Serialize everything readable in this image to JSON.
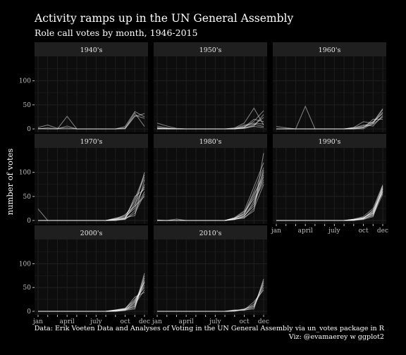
{
  "title": "Activity ramps up in the UN General Assembly",
  "subtitle": "Role call votes by month, 1946-2015",
  "caption_line1": "Data: Erik Voeten Data and Analyses of Voting in the UN General Assembly via un_votes package in R",
  "caption_line2": "Viz: @evamaerey w ggplot2",
  "colors": {
    "background": "#000000",
    "panel": "#0d0d0d",
    "strip": "#1f1f1f",
    "grid": "#1e1e1e",
    "line": "#ffffff"
  },
  "chart_data": {
    "type": "line",
    "facet_by": "decade",
    "xlabel": "",
    "ylabel": "number of votes",
    "x": [
      "jan",
      "feb",
      "mar",
      "april",
      "may",
      "june",
      "july",
      "aug",
      "sep",
      "oct",
      "nov",
      "dec"
    ],
    "x_tick_labels": [
      "jan",
      "april",
      "july",
      "oct",
      "dec"
    ],
    "y_ticks": [
      0,
      50,
      100
    ],
    "ylim": [
      0,
      145
    ],
    "grid": true,
    "panels": [
      {
        "label": "1940's",
        "series": [
          {
            "values": [
              3,
              8,
              1,
              2,
              0,
              0,
              0,
              0,
              0,
              2,
              28,
              22
            ]
          },
          {
            "values": [
              0,
              2,
              0,
              26,
              0,
              0,
              0,
              0,
              0,
              1,
              33,
              5
            ]
          },
          {
            "values": [
              0,
              0,
              0,
              6,
              0,
              0,
              0,
              0,
              0,
              5,
              36,
              25
            ]
          },
          {
            "values": [
              1,
              0,
              0,
              0,
              0,
              0,
              0,
              0,
              0,
              0,
              26,
              32
            ]
          }
        ]
      },
      {
        "label": "1950's",
        "series": [
          {
            "values": [
              12,
              6,
              1,
              0,
              0,
              0,
              0,
              0,
              0,
              6,
              10,
              5
            ]
          },
          {
            "values": [
              2,
              1,
              0,
              0,
              0,
              0,
              0,
              0,
              2,
              12,
              43,
              8
            ]
          },
          {
            "values": [
              0,
              0,
              0,
              0,
              0,
              0,
              0,
              0,
              0,
              3,
              16,
              38
            ]
          },
          {
            "values": [
              6,
              2,
              0,
              0,
              0,
              0,
              0,
              0,
              0,
              2,
              8,
              24
            ]
          },
          {
            "values": [
              0,
              1,
              0,
              0,
              0,
              0,
              0,
              0,
              0,
              4,
              20,
              15
            ]
          },
          {
            "values": [
              1,
              0,
              0,
              0,
              0,
              0,
              0,
              0,
              0,
              1,
              6,
              30
            ]
          },
          {
            "values": [
              0,
              0,
              0,
              0,
              0,
              0,
              0,
              0,
              1,
              8,
              12,
              10
            ]
          },
          {
            "values": [
              3,
              0,
              0,
              0,
              0,
              0,
              0,
              0,
              0,
              2,
              5,
              3
            ]
          }
        ]
      },
      {
        "label": "1960's",
        "series": [
          {
            "values": [
              5,
              2,
              0,
              47,
              0,
              0,
              0,
              0,
              3,
              15,
              12,
              40
            ]
          },
          {
            "values": [
              0,
              0,
              0,
              0,
              0,
              0,
              0,
              0,
              2,
              6,
              15,
              32
            ]
          },
          {
            "values": [
              0,
              0,
              0,
              0,
              0,
              0,
              0,
              0,
              1,
              4,
              10,
              25
            ]
          },
          {
            "values": [
              0,
              0,
              0,
              0,
              0,
              0,
              0,
              0,
              0,
              3,
              14,
              42
            ]
          },
          {
            "values": [
              0,
              0,
              0,
              0,
              0,
              0,
              0,
              0,
              2,
              8,
              6,
              28
            ]
          },
          {
            "values": [
              0,
              0,
              0,
              0,
              0,
              0,
              0,
              0,
              0,
              2,
              20,
              20
            ]
          },
          {
            "values": [
              0,
              0,
              0,
              0,
              0,
              0,
              0,
              0,
              0,
              0,
              12,
              35
            ]
          }
        ]
      },
      {
        "label": "1970's",
        "series": [
          {
            "values": [
              24,
              0,
              0,
              0,
              0,
              0,
              0,
              0,
              3,
              5,
              30,
              100
            ]
          },
          {
            "values": [
              0,
              0,
              0,
              0,
              0,
              0,
              0,
              0,
              5,
              10,
              40,
              90
            ]
          },
          {
            "values": [
              0,
              0,
              0,
              0,
              0,
              0,
              0,
              0,
              2,
              3,
              15,
              55
            ]
          },
          {
            "values": [
              0,
              0,
              0,
              0,
              0,
              0,
              0,
              0,
              4,
              8,
              25,
              75
            ]
          },
          {
            "values": [
              0,
              0,
              0,
              0,
              0,
              0,
              0,
              0,
              1,
              2,
              20,
              60
            ]
          },
          {
            "values": [
              0,
              0,
              0,
              0,
              0,
              0,
              0,
              0,
              0,
              5,
              45,
              95
            ]
          },
          {
            "values": [
              0,
              0,
              0,
              0,
              0,
              0,
              0,
              0,
              2,
              12,
              30,
              50
            ]
          },
          {
            "values": [
              0,
              0,
              0,
              0,
              0,
              0,
              0,
              0,
              3,
              6,
              10,
              85
            ]
          },
          {
            "values": [
              0,
              0,
              0,
              0,
              0,
              0,
              0,
              0,
              1,
              4,
              35,
              70
            ]
          },
          {
            "values": [
              0,
              0,
              0,
              0,
              0,
              0,
              0,
              0,
              0,
              3,
              50,
              65
            ]
          }
        ]
      },
      {
        "label": "1980's",
        "series": [
          {
            "values": [
              1,
              0,
              3,
              0,
              0,
              0,
              0,
              0,
              2,
              6,
              20,
              140
            ]
          },
          {
            "values": [
              0,
              0,
              0,
              0,
              0,
              0,
              0,
              0,
              4,
              15,
              60,
              110
            ]
          },
          {
            "values": [
              0,
              0,
              0,
              0,
              0,
              0,
              0,
              0,
              3,
              10,
              30,
              95
            ]
          },
          {
            "values": [
              0,
              0,
              0,
              0,
              0,
              0,
              0,
              0,
              5,
              12,
              50,
              100
            ]
          },
          {
            "values": [
              0,
              0,
              0,
              0,
              0,
              0,
              0,
              0,
              2,
              8,
              40,
              80
            ]
          },
          {
            "values": [
              0,
              0,
              0,
              0,
              0,
              0,
              0,
              0,
              6,
              20,
              70,
              120
            ]
          },
          {
            "values": [
              0,
              0,
              0,
              0,
              0,
              0,
              0,
              0,
              3,
              5,
              25,
              75
            ]
          },
          {
            "values": [
              0,
              0,
              0,
              0,
              0,
              0,
              0,
              0,
              4,
              14,
              55,
              90
            ]
          },
          {
            "values": [
              0,
              0,
              0,
              0,
              0,
              0,
              0,
              0,
              2,
              9,
              35,
              105
            ]
          },
          {
            "values": [
              0,
              0,
              0,
              0,
              0,
              0,
              0,
              0,
              5,
              18,
              45,
              85
            ]
          }
        ]
      },
      {
        "label": "1990's",
        "series": [
          {
            "values": [
              0,
              0,
              0,
              0,
              0,
              0,
              0,
              0,
              2,
              5,
              20,
              70
            ]
          },
          {
            "values": [
              0,
              0,
              0,
              0,
              0,
              0,
              0,
              0,
              1,
              3,
              12,
              65
            ]
          },
          {
            "values": [
              0,
              0,
              0,
              0,
              0,
              0,
              0,
              0,
              3,
              8,
              25,
              74
            ]
          },
          {
            "values": [
              0,
              0,
              0,
              0,
              0,
              0,
              0,
              0,
              1,
              4,
              10,
              55
            ]
          },
          {
            "values": [
              0,
              0,
              0,
              0,
              0,
              0,
              0,
              0,
              2,
              6,
              15,
              60
            ]
          },
          {
            "values": [
              0,
              0,
              0,
              0,
              0,
              0,
              0,
              0,
              0,
              2,
              8,
              68
            ]
          },
          {
            "values": [
              0,
              0,
              0,
              0,
              0,
              0,
              0,
              0,
              1,
              5,
              18,
              72
            ]
          },
          {
            "values": [
              0,
              0,
              0,
              0,
              0,
              0,
              0,
              0,
              2,
              3,
              14,
              62
            ]
          },
          {
            "values": [
              0,
              0,
              0,
              0,
              0,
              0,
              0,
              0,
              1,
              4,
              22,
              58
            ]
          },
          {
            "values": [
              0,
              0,
              0,
              0,
              0,
              0,
              0,
              0,
              0,
              6,
              16,
              66
            ]
          }
        ]
      },
      {
        "label": "2000's",
        "series": [
          {
            "values": [
              0,
              0,
              0,
              0,
              0,
              0,
              0,
              0,
              2,
              5,
              10,
              80
            ]
          },
          {
            "values": [
              0,
              0,
              0,
              0,
              0,
              0,
              0,
              0,
              1,
              3,
              20,
              60
            ]
          },
          {
            "values": [
              0,
              0,
              0,
              0,
              0,
              0,
              0,
              0,
              3,
              6,
              25,
              50
            ]
          },
          {
            "values": [
              0,
              0,
              0,
              0,
              0,
              0,
              0,
              0,
              0,
              2,
              5,
              75
            ]
          },
          {
            "values": [
              0,
              0,
              0,
              0,
              0,
              0,
              0,
              0,
              2,
              4,
              15,
              45
            ]
          },
          {
            "values": [
              0,
              0,
              0,
              0,
              0,
              0,
              0,
              0,
              1,
              3,
              8,
              65
            ]
          },
          {
            "values": [
              0,
              0,
              0,
              0,
              0,
              0,
              0,
              0,
              2,
              5,
              30,
              40
            ]
          },
          {
            "values": [
              0,
              0,
              0,
              0,
              0,
              0,
              0,
              0,
              0,
              2,
              12,
              70
            ]
          },
          {
            "values": [
              0,
              0,
              0,
              0,
              0,
              0,
              0,
              0,
              1,
              4,
              18,
              55
            ]
          },
          {
            "values": [
              0,
              0,
              0,
              0,
              0,
              0,
              0,
              0,
              3,
              6,
              22,
              62
            ]
          }
        ]
      },
      {
        "label": "2010's",
        "series": [
          {
            "values": [
              0,
              0,
              0,
              0,
              0,
              0,
              0,
              0,
              2,
              3,
              5,
              68
            ]
          },
          {
            "values": [
              0,
              0,
              0,
              0,
              0,
              0,
              0,
              0,
              1,
              4,
              15,
              55
            ]
          },
          {
            "values": [
              0,
              0,
              0,
              0,
              0,
              0,
              0,
              0,
              3,
              2,
              8,
              60
            ]
          },
          {
            "values": [
              0,
              0,
              0,
              0,
              0,
              0,
              0,
              0,
              1,
              5,
              12,
              50
            ]
          },
          {
            "values": [
              0,
              0,
              0,
              0,
              0,
              0,
              0,
              0,
              2,
              3,
              20,
              45
            ]
          },
          {
            "values": [
              0,
              0,
              0,
              0,
              0,
              0,
              0,
              0,
              0,
              4,
              10,
              64
            ]
          }
        ]
      }
    ]
  }
}
